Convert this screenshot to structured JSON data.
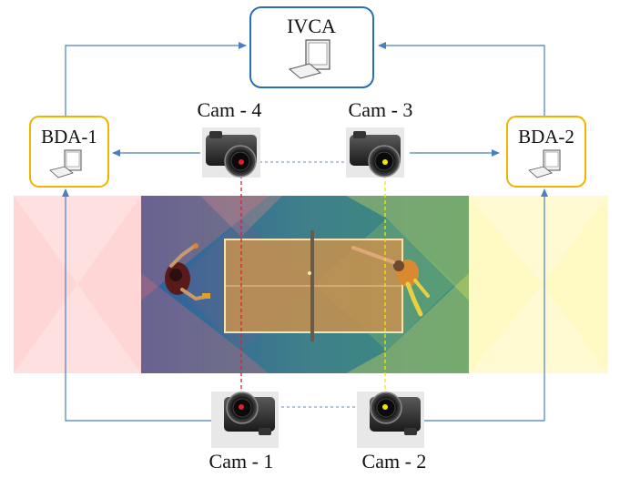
{
  "nodes": {
    "ivca": {
      "label": "IVCA"
    },
    "bda1": {
      "label": "BDA-1"
    },
    "bda2": {
      "label": "BDA-2"
    }
  },
  "cameras": {
    "cam1": {
      "label": "Cam - 1",
      "dot_color": "#e0202a"
    },
    "cam2": {
      "label": "Cam - 2",
      "dot_color": "#f2e600"
    },
    "cam3": {
      "label": "Cam - 3",
      "dot_color": "#f2e600"
    },
    "cam4": {
      "label": "Cam - 4",
      "dot_color": "#e0202a"
    }
  },
  "colors": {
    "ivca_border": "#2a6fb3",
    "bda_border": "#f0b400",
    "arrow": "#4a7fc0",
    "red_zone": "#ff7a7a",
    "yellow_zone": "#fff07a",
    "court": "#2f6ea3",
    "table": "#c8914e",
    "link_dash": "#5a8ed0"
  },
  "icons": {
    "computer": "computer-icon",
    "camera": "camera-icon",
    "player_left": "player-figure-icon",
    "player_right": "player-figure-icon"
  }
}
